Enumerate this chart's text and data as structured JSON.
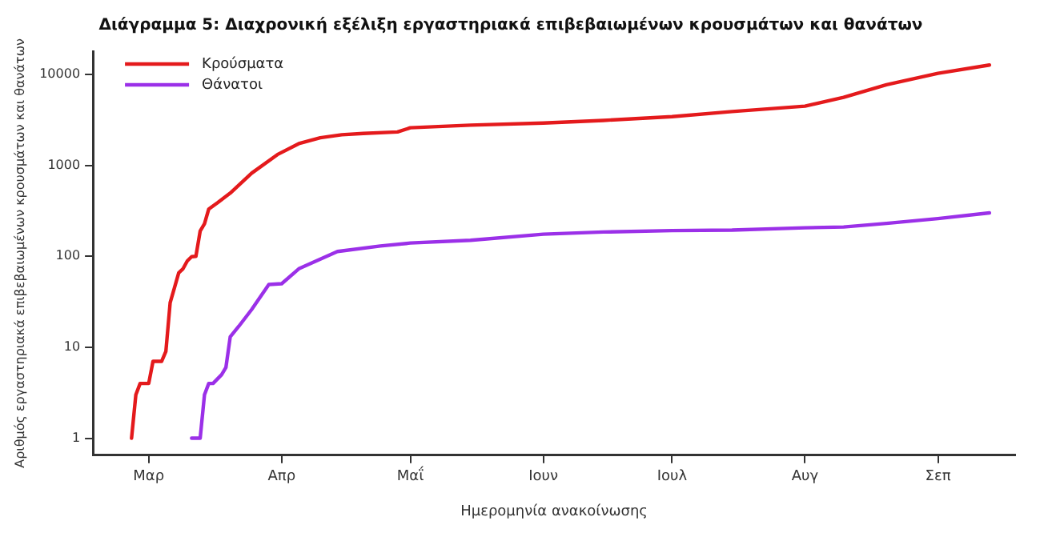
{
  "chart_data": {
    "type": "line",
    "title": "Διάγραμμα 5: Διαχρονική εξέλιξη εργαστηριακά επιβεβαιωμένων κρουσμάτων και θανάτων",
    "xlabel": "Ημερομηνία ανακοίνωσης",
    "ylabel": "Αριθμός εργαστηριακά επιβεβαιωμένων κρουσμάτων και θανάτων",
    "log": "y",
    "grid": false,
    "legend": "top left",
    "marker": "none",
    "line_style": "solid",
    "categories": [
      null,
      null,
      null,
      null,
      null,
      null,
      null,
      null,
      null,
      null,
      null,
      null,
      null,
      "Μαρ",
      null,
      null,
      null,
      null,
      null,
      null,
      null,
      null,
      null,
      null,
      null,
      null,
      null,
      null,
      null,
      null,
      null,
      null,
      null,
      null,
      null,
      null,
      null,
      null,
      null,
      null,
      null,
      null,
      null,
      null,
      "Απρ",
      null,
      null,
      null,
      null,
      null,
      null,
      null,
      null,
      null,
      null,
      null,
      null,
      null,
      null,
      null,
      null,
      null,
      null,
      null,
      null,
      null,
      null,
      null,
      null,
      null,
      null,
      null,
      null,
      null,
      "Μαΐ",
      null,
      null,
      null,
      null,
      null,
      null,
      null,
      null,
      null,
      null,
      null,
      null,
      null,
      null,
      null,
      null,
      null,
      null,
      null,
      null,
      null,
      null,
      null,
      null,
      null,
      null,
      null,
      null,
      null,
      null,
      "Ιουν",
      null,
      null,
      null,
      null,
      null,
      null,
      null,
      null,
      null,
      null,
      null,
      null,
      null,
      null,
      null,
      null,
      null,
      null,
      null,
      null,
      null,
      null,
      null,
      null,
      null,
      null,
      null,
      null,
      null,
      "Ιουλ",
      null,
      null,
      null,
      null,
      null,
      null,
      null,
      null,
      null,
      null,
      null,
      null,
      null,
      null,
      null,
      null,
      null,
      null,
      null,
      null,
      null,
      null,
      null,
      null,
      null,
      null,
      null,
      null,
      null,
      null,
      "Αυγ",
      null,
      null,
      null,
      null,
      null,
      null,
      null,
      null,
      null,
      null,
      null,
      null,
      null,
      null,
      null,
      null,
      null,
      null,
      null,
      null,
      null,
      null,
      null,
      null,
      null,
      null,
      null,
      null,
      null,
      null,
      "Σεπ",
      null,
      null,
      null,
      null,
      null,
      null,
      null,
      null,
      null,
      null,
      null,
      null,
      null,
      null,
      null,
      null,
      null,
      null
    ],
    "ylim": [
      0.65,
      18000
    ],
    "yticks": [
      1,
      10,
      100,
      1000,
      10000
    ],
    "series": [
      {
        "name": "Κρούσματα",
        "color": "#e41a1c",
        "values": [
          null,
          null,
          null,
          null,
          null,
          null,
          null,
          null,
          null,
          1,
          3,
          4,
          null,
          4,
          7,
          null,
          7,
          9,
          31,
          45,
          66,
          73,
          89,
          99,
          100,
          190,
          228,
          331,
          null,
          387,
          null,
          null,
          495,
          null,
          null,
          null,
          null,
          821,
          null,
          null,
          null,
          null,
          null,
          1314,
          null,
          null,
          null,
          null,
          1735,
          null,
          null,
          null,
          null,
          2011,
          null,
          null,
          null,
          null,
          2170,
          null,
          null,
          null,
          null,
          2245,
          null,
          null,
          null,
          null,
          null,
          null,
          null,
          2330,
          null,
          null,
          2591,
          null,
          null,
          null,
          null,
          null,
          null,
          null,
          null,
          null,
          null,
          null,
          null,
          null,
          2770,
          null,
          null,
          null,
          null,
          null,
          null,
          null,
          null,
          null,
          null,
          null,
          null,
          null,
          null,
          null,
          null,
          2918,
          null,
          null,
          null,
          null,
          null,
          null,
          null,
          null,
          null,
          null,
          null,
          null,
          null,
          3121,
          null,
          null,
          null,
          null,
          null,
          null,
          null,
          null,
          null,
          null,
          null,
          null,
          null,
          null,
          null,
          3432,
          null,
          null,
          null,
          null,
          null,
          null,
          null,
          null,
          null,
          null,
          null,
          null,
          null,
          3910,
          null,
          null,
          null,
          null,
          null,
          null,
          null,
          null,
          null,
          null,
          null,
          null,
          null,
          null,
          null,
          null,
          4477,
          null,
          null,
          null,
          null,
          null,
          null,
          null,
          null,
          5600,
          null,
          null,
          null,
          null,
          null,
          null,
          null,
          null,
          null,
          7700,
          null,
          null,
          null,
          null,
          null,
          null,
          null,
          null,
          null,
          null,
          null,
          10300,
          null,
          null,
          null,
          null,
          null,
          null,
          null,
          null,
          null,
          null,
          null,
          12700,
          null,
          null,
          null,
          null,
          null,
          null
        ]
      },
      {
        "name": "Θάνατοι",
        "color": "#9b30e8",
        "values": [
          null,
          null,
          null,
          null,
          null,
          null,
          null,
          null,
          null,
          null,
          null,
          null,
          null,
          null,
          null,
          null,
          null,
          null,
          null,
          null,
          null,
          null,
          null,
          1,
          null,
          1,
          3,
          4,
          4,
          null,
          5,
          6,
          13,
          null,
          17,
          null,
          null,
          26,
          null,
          null,
          null,
          49,
          null,
          null,
          50,
          null,
          null,
          null,
          73,
          null,
          null,
          null,
          null,
          null,
          null,
          null,
          null,
          113,
          null,
          null,
          null,
          null,
          null,
          null,
          null,
          null,
          null,
          130,
          null,
          null,
          null,
          null,
          null,
          null,
          140,
          null,
          null,
          null,
          null,
          null,
          null,
          null,
          null,
          null,
          null,
          null,
          null,
          null,
          150,
          null,
          null,
          null,
          null,
          null,
          null,
          null,
          null,
          null,
          null,
          null,
          null,
          null,
          null,
          null,
          null,
          175,
          null,
          null,
          null,
          null,
          null,
          null,
          null,
          null,
          null,
          null,
          null,
          null,
          null,
          185,
          null,
          null,
          null,
          null,
          null,
          null,
          null,
          null,
          null,
          null,
          null,
          null,
          null,
          null,
          null,
          192,
          null,
          null,
          null,
          null,
          null,
          null,
          null,
          null,
          null,
          null,
          null,
          null,
          null,
          194,
          null,
          null,
          null,
          null,
          null,
          null,
          null,
          null,
          null,
          null,
          null,
          null,
          null,
          null,
          null,
          null,
          206,
          null,
          null,
          null,
          null,
          null,
          null,
          null,
          null,
          210,
          null,
          null,
          null,
          null,
          null,
          null,
          null,
          null,
          null,
          230,
          null,
          null,
          null,
          null,
          null,
          null,
          null,
          null,
          null,
          null,
          null,
          260,
          null,
          null,
          null,
          null,
          null,
          null,
          null,
          null,
          null,
          null,
          null,
          300,
          null,
          null,
          null,
          null,
          null,
          null
        ]
      }
    ]
  }
}
